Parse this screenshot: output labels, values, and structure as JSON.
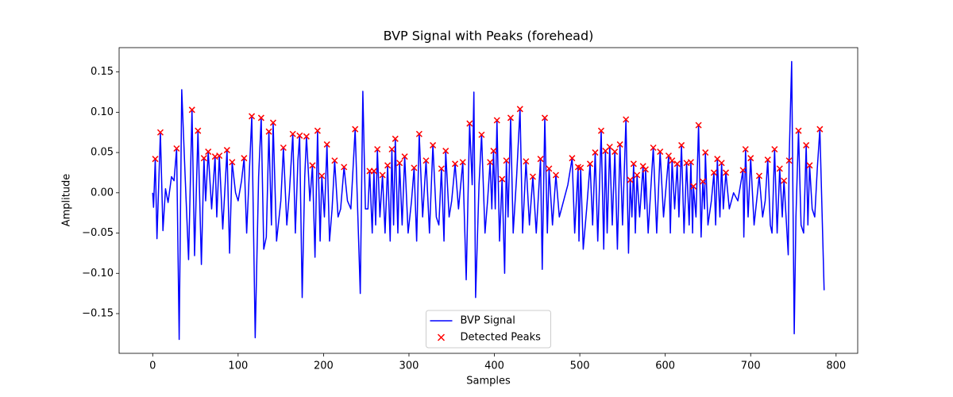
{
  "chart_data": {
    "type": "line",
    "title": "BVP Signal with Peaks (forehead)",
    "xlabel": "Samples",
    "ylabel": "Amplitude",
    "xlim": [
      -39.3,
      825.3
    ],
    "ylim": [
      -0.1993,
      0.1802
    ],
    "xticks": [
      0,
      100,
      200,
      300,
      400,
      500,
      600,
      700,
      800
    ],
    "yticks": [
      {
        "value": -0.15,
        "label": "−0.15"
      },
      {
        "value": -0.1,
        "label": "−0.10"
      },
      {
        "value": -0.05,
        "label": "−0.05"
      },
      {
        "value": 0,
        "label": "0.00"
      },
      0.05,
      {
        "value": 0.1,
        "label": "0.10"
      },
      0.15
    ],
    "legend": "lower center",
    "series": [
      {
        "name": "BVP Signal",
        "color": "#0000ff",
        "type": "line",
        "x": [
          0,
          1,
          3,
          5,
          9,
          12,
          15,
          18,
          22,
          25,
          28,
          31,
          34,
          38,
          42,
          46,
          49,
          53,
          57,
          60,
          62,
          65,
          69,
          73,
          75,
          78,
          82,
          87,
          90,
          93,
          97,
          100,
          104,
          107,
          110,
          116,
          120,
          124,
          127,
          130,
          133,
          136,
          139,
          141,
          145,
          150,
          153,
          157,
          160,
          164,
          167,
          170,
          172,
          175,
          178,
          180,
          184,
          187,
          190,
          193,
          196,
          198,
          201,
          204,
          207,
          210,
          213,
          217,
          220,
          224,
          228,
          232,
          237,
          243,
          246,
          249,
          252,
          254,
          257,
          259,
          261,
          263,
          266,
          269,
          272,
          275,
          278,
          280,
          282,
          284,
          287,
          289,
          292,
          295,
          299,
          303,
          306,
          309,
          312,
          316,
          320,
          324,
          328,
          332,
          335,
          338,
          341,
          343,
          347,
          350,
          354,
          358,
          363,
          367,
          371,
          374,
          376,
          378,
          382,
          385,
          389,
          392,
          395,
          397,
          399,
          401,
          403,
          406,
          409,
          412,
          414,
          416,
          419,
          422,
          426,
          430,
          433,
          437,
          441,
          445,
          449,
          454,
          456,
          459,
          462,
          464,
          468,
          472,
          476,
          481,
          486,
          491,
          494,
          498,
          499,
          501,
          504,
          508,
          512,
          515,
          518,
          521,
          525,
          528,
          530,
          532,
          535,
          538,
          541,
          544,
          547,
          550,
          554,
          557,
          559,
          561,
          563,
          565,
          567,
          570,
          574,
          576,
          577,
          580,
          586,
          590,
          594,
          598,
          604,
          606,
          608,
          611,
          614,
          616,
          619,
          622,
          625,
          628,
          630,
          632,
          633,
          636,
          639,
          642,
          644,
          646,
          647,
          650,
          654,
          657,
          659,
          661,
          664,
          666,
          668,
          671,
          675,
          680,
          685,
          691,
          692,
          694,
          697,
          700,
          704,
          707,
          710,
          714,
          717,
          720,
          723,
          725,
          728,
          731,
          734,
          737,
          739,
          742,
          744,
          745,
          748,
          751,
          753,
          756,
          759,
          762,
          765,
          767,
          769,
          772,
          775,
          778,
          781,
          786
        ],
        "values": [
          0.0,
          -0.018,
          0.042,
          -0.057,
          0.075,
          -0.047,
          0.005,
          -0.012,
          0.02,
          0.015,
          0.055,
          -0.182,
          0.128,
          0.02,
          -0.083,
          0.103,
          -0.078,
          0.077,
          -0.089,
          0.043,
          -0.01,
          0.051,
          -0.02,
          0.045,
          -0.03,
          0.046,
          -0.045,
          0.053,
          -0.075,
          0.038,
          0.0,
          -0.01,
          0.015,
          0.043,
          -0.05,
          0.095,
          -0.18,
          0.02,
          0.093,
          -0.07,
          -0.055,
          0.076,
          -0.04,
          0.087,
          -0.06,
          -0.01,
          0.056,
          -0.04,
          0.0,
          0.073,
          -0.05,
          0.04,
          0.071,
          -0.13,
          0.02,
          0.07,
          -0.01,
          0.034,
          -0.08,
          0.077,
          -0.06,
          0.021,
          -0.03,
          0.06,
          -0.06,
          -0.02,
          0.04,
          -0.03,
          -0.02,
          0.032,
          -0.01,
          -0.02,
          0.079,
          -0.125,
          0.126,
          -0.02,
          -0.02,
          0.027,
          -0.05,
          0.027,
          -0.04,
          0.054,
          -0.03,
          0.022,
          -0.05,
          0.034,
          -0.06,
          0.054,
          -0.04,
          0.067,
          -0.05,
          0.037,
          -0.04,
          0.045,
          -0.05,
          -0.01,
          0.031,
          -0.06,
          0.073,
          -0.03,
          0.04,
          -0.05,
          0.059,
          -0.03,
          -0.04,
          0.03,
          -0.06,
          0.052,
          -0.03,
          -0.01,
          0.036,
          -0.02,
          0.038,
          -0.108,
          0.086,
          0.01,
          0.125,
          -0.13,
          0.01,
          0.072,
          -0.05,
          -0.01,
          0.038,
          -0.02,
          0.052,
          -0.02,
          0.09,
          -0.06,
          0.017,
          -0.1,
          0.04,
          -0.03,
          0.093,
          -0.05,
          0.02,
          0.104,
          -0.05,
          0.039,
          -0.04,
          0.02,
          -0.05,
          0.042,
          -0.095,
          0.093,
          -0.05,
          0.03,
          -0.04,
          0.022,
          -0.03,
          -0.01,
          0.01,
          0.043,
          -0.05,
          0.032,
          -0.06,
          0.031,
          -0.07,
          -0.02,
          0.036,
          -0.04,
          0.05,
          -0.06,
          0.077,
          -0.07,
          0.052,
          -0.05,
          0.057,
          -0.04,
          0.051,
          -0.07,
          0.06,
          -0.04,
          0.091,
          -0.075,
          0.016,
          -0.03,
          0.036,
          -0.05,
          0.022,
          -0.03,
          0.033,
          -0.02,
          0.029,
          -0.05,
          0.056,
          -0.05,
          0.051,
          -0.03,
          0.046,
          -0.05,
          0.04,
          -0.02,
          0.036,
          -0.03,
          0.059,
          -0.05,
          0.037,
          -0.04,
          0.038,
          -0.05,
          0.008,
          -0.03,
          0.084,
          -0.055,
          0.014,
          -0.02,
          0.05,
          -0.04,
          -0.01,
          0.025,
          -0.04,
          0.042,
          -0.03,
          0.037,
          -0.02,
          0.025,
          -0.02,
          0.0,
          -0.01,
          0.028,
          -0.055,
          0.054,
          -0.03,
          0.043,
          -0.04,
          -0.01,
          0.021,
          -0.03,
          -0.01,
          0.041,
          -0.04,
          -0.05,
          0.054,
          -0.05,
          0.03,
          -0.03,
          0.015,
          -0.04,
          -0.077,
          0.04,
          0.163,
          -0.175,
          -0.03,
          0.077,
          -0.04,
          -0.05,
          0.059,
          -0.04,
          0.034,
          -0.02,
          -0.03,
          0.03,
          0.079,
          -0.121
        ]
      },
      {
        "name": "Detected Peaks",
        "color": "#ff0000",
        "type": "scatter",
        "marker": "x",
        "x": [
          3,
          9,
          28,
          46,
          53,
          60,
          65,
          73,
          78,
          87,
          93,
          107,
          116,
          127,
          136,
          141,
          153,
          164,
          172,
          180,
          187,
          193,
          198,
          204,
          213,
          224,
          237,
          254,
          259,
          263,
          269,
          275,
          280,
          284,
          289,
          295,
          306,
          312,
          320,
          328,
          338,
          343,
          354,
          363,
          371,
          385,
          395,
          399,
          403,
          409,
          414,
          419,
          430,
          437,
          445,
          454,
          459,
          464,
          472,
          491,
          498,
          501,
          512,
          518,
          525,
          530,
          535,
          541,
          547,
          554,
          559,
          563,
          567,
          574,
          577,
          586,
          594,
          604,
          608,
          614,
          619,
          625,
          630,
          633,
          639,
          644,
          647,
          657,
          661,
          666,
          671,
          691,
          694,
          700,
          710,
          720,
          728,
          734,
          739,
          745,
          756,
          765,
          769,
          781
        ],
        "values": [
          0.042,
          0.075,
          0.055,
          0.103,
          0.077,
          0.043,
          0.051,
          0.045,
          0.046,
          0.053,
          0.038,
          0.043,
          0.095,
          0.093,
          0.076,
          0.087,
          0.056,
          0.073,
          0.071,
          0.07,
          0.034,
          0.077,
          0.021,
          0.06,
          0.04,
          0.032,
          0.079,
          0.027,
          0.027,
          0.054,
          0.022,
          0.034,
          0.054,
          0.067,
          0.037,
          0.045,
          0.031,
          0.073,
          0.04,
          0.059,
          0.03,
          0.052,
          0.036,
          0.038,
          0.086,
          0.072,
          0.038,
          0.052,
          0.09,
          0.017,
          0.04,
          0.093,
          0.104,
          0.039,
          0.02,
          0.042,
          0.093,
          0.03,
          0.022,
          0.043,
          0.032,
          0.031,
          0.036,
          0.05,
          0.077,
          0.052,
          0.057,
          0.051,
          0.06,
          0.091,
          0.016,
          0.036,
          0.022,
          0.033,
          0.029,
          0.056,
          0.051,
          0.046,
          0.04,
          0.036,
          0.059,
          0.037,
          0.038,
          0.008,
          0.084,
          0.014,
          0.05,
          0.025,
          0.042,
          0.037,
          0.025,
          0.028,
          0.054,
          0.043,
          0.021,
          0.041,
          0.054,
          0.03,
          0.015,
          0.04,
          0.077,
          0.059,
          0.034,
          0.079
        ]
      }
    ]
  }
}
